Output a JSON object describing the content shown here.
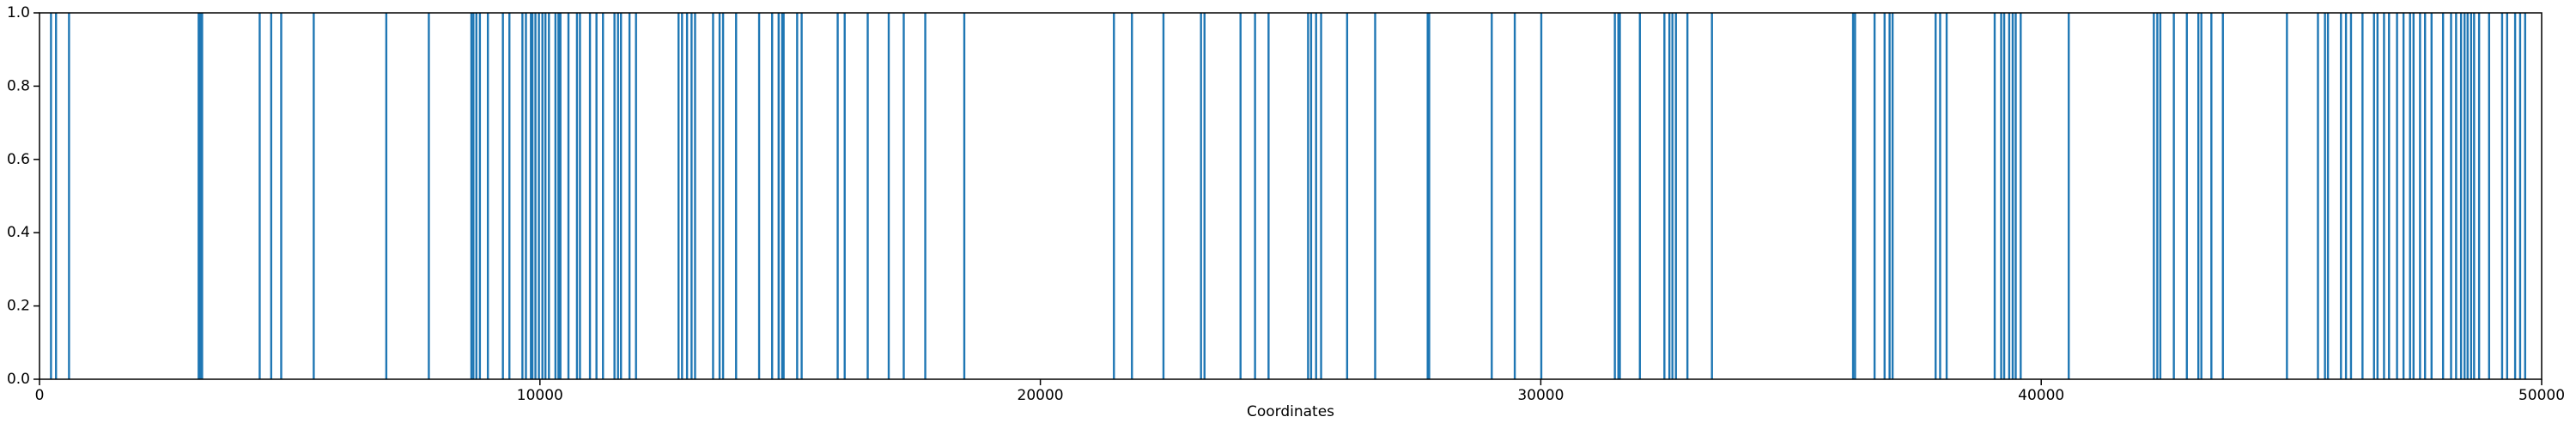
{
  "chart_data": {
    "type": "bar",
    "xlabel": "Coordinates",
    "color": "#1f77b4",
    "x": [
      230,
      330,
      590,
      3180,
      3220,
      3250,
      4400,
      4630,
      4830,
      5480,
      6930,
      7780,
      8630,
      8670,
      8730,
      8800,
      8960,
      9260,
      9390,
      9650,
      9720,
      9820,
      9850,
      9910,
      9980,
      10050,
      10110,
      10180,
      10310,
      10370,
      10410,
      10570,
      10740,
      10800,
      11000,
      11130,
      11260,
      11490,
      11560,
      11620,
      11790,
      11920,
      12770,
      12840,
      12940,
      13030,
      13100,
      13460,
      13590,
      13660,
      13920,
      14380,
      14640,
      14770,
      14840,
      14870,
      15140,
      15230,
      15950,
      16090,
      16550,
      16970,
      17270,
      17700,
      18480,
      21470,
      21830,
      22460,
      23210,
      23280,
      24000,
      24290,
      24560,
      25350,
      25410,
      25510,
      25610,
      26130,
      26690,
      27740,
      27770,
      29020,
      29480,
      30010,
      31480,
      31550,
      31580,
      31980,
      32470,
      32570,
      32630,
      32700,
      32930,
      33420,
      36240,
      36280,
      36670,
      36870,
      36970,
      37030,
      37890,
      37980,
      38110,
      39070,
      39200,
      39260,
      39360,
      39430,
      39490,
      39590,
      40550,
      42250,
      42320,
      42380,
      42650,
      42910,
      43140,
      43200,
      43400,
      43630,
      44910,
      45530,
      45670,
      45730,
      45990,
      46090,
      46190,
      46420,
      46650,
      46720,
      46850,
      46950,
      47110,
      47240,
      47370,
      47440,
      47570,
      47670,
      47800,
      48030,
      48190,
      48290,
      48390,
      48460,
      48520,
      48590,
      48650,
      48750,
      48950,
      49210,
      49310,
      49470,
      49570,
      49670
    ],
    "values": [
      1,
      1,
      1,
      1,
      1,
      1,
      1,
      1,
      1,
      1,
      1,
      1,
      1,
      1,
      1,
      1,
      1,
      1,
      1,
      1,
      1,
      1,
      1,
      1,
      1,
      1,
      1,
      1,
      1,
      1,
      1,
      1,
      1,
      1,
      1,
      1,
      1,
      1,
      1,
      1,
      1,
      1,
      1,
      1,
      1,
      1,
      1,
      1,
      1,
      1,
      1,
      1,
      1,
      1,
      1,
      1,
      1,
      1,
      1,
      1,
      1,
      1,
      1,
      1,
      1,
      1,
      1,
      1,
      1,
      1,
      1,
      1,
      1,
      1,
      1,
      1,
      1,
      1,
      1,
      1,
      1,
      1,
      1,
      1,
      1,
      1,
      1,
      1,
      1,
      1,
      1,
      1,
      1,
      1,
      1,
      1,
      1,
      1,
      1,
      1,
      1,
      1,
      1,
      1,
      1,
      1,
      1,
      1,
      1,
      1,
      1,
      1,
      1,
      1,
      1,
      1,
      1,
      1,
      1,
      1,
      1,
      1,
      1,
      1,
      1,
      1,
      1,
      1,
      1,
      1,
      1,
      1,
      1,
      1,
      1,
      1,
      1,
      1,
      1,
      1,
      1,
      1,
      1,
      1,
      1,
      1,
      1,
      1,
      1,
      1,
      1,
      1,
      1,
      1
    ],
    "xlim": [
      0,
      50000
    ],
    "xticks": [
      0,
      10000,
      20000,
      30000,
      40000,
      50000
    ],
    "ylim": [
      0,
      1
    ],
    "yticks": [
      {
        "value": 0,
        "label": "0.0"
      },
      {
        "value": 0.2,
        "label": "0.2"
      },
      {
        "value": 0.4,
        "label": "0.4"
      },
      {
        "value": 0.6,
        "label": "0.6"
      },
      {
        "value": 0.8,
        "label": "0.8"
      },
      {
        "value": 1,
        "label": "1.0"
      }
    ]
  }
}
